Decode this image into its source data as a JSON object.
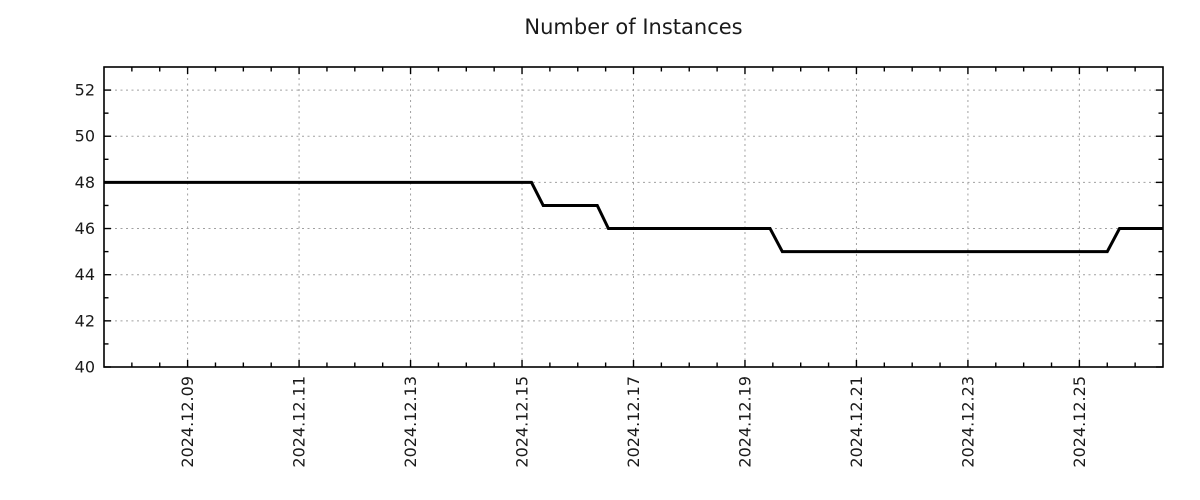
{
  "chart_data": {
    "type": "line",
    "title": "Number of Instances",
    "x_tick_labels": [
      "2024.12.09",
      "2024.12.11",
      "2024.12.13",
      "2024.12.15",
      "2024.12.17",
      "2024.12.19",
      "2024.12.21",
      "2024.12.23",
      "2024.12.25"
    ],
    "x_tick_values": [
      9,
      11,
      13,
      15,
      17,
      19,
      21,
      23,
      25
    ],
    "x_minor_step": 0.5,
    "xlim": [
      7.5,
      26.5
    ],
    "x_values_unit": "day of December 2024",
    "y_tick_labels": [
      "40",
      "42",
      "44",
      "46",
      "48",
      "50",
      "52"
    ],
    "y_tick_values": [
      40,
      42,
      44,
      46,
      48,
      50,
      52
    ],
    "y_minor_step": 1,
    "ylim": [
      40,
      53
    ],
    "grid": true,
    "legend": "none",
    "series": [
      {
        "name": "instances",
        "color": "#000000",
        "points": [
          [
            7.5,
            48
          ],
          [
            15.17,
            48
          ],
          [
            15.38,
            47
          ],
          [
            16.35,
            47
          ],
          [
            16.55,
            46
          ],
          [
            19.45,
            46
          ],
          [
            19.67,
            45
          ],
          [
            25.5,
            45
          ],
          [
            25.72,
            46
          ],
          [
            26.5,
            46
          ]
        ]
      }
    ],
    "colors": {
      "line": "#000000",
      "grid": "#a0a0a0",
      "border": "#000000",
      "text": "#1a1a1a",
      "background": "#ffffff"
    }
  }
}
